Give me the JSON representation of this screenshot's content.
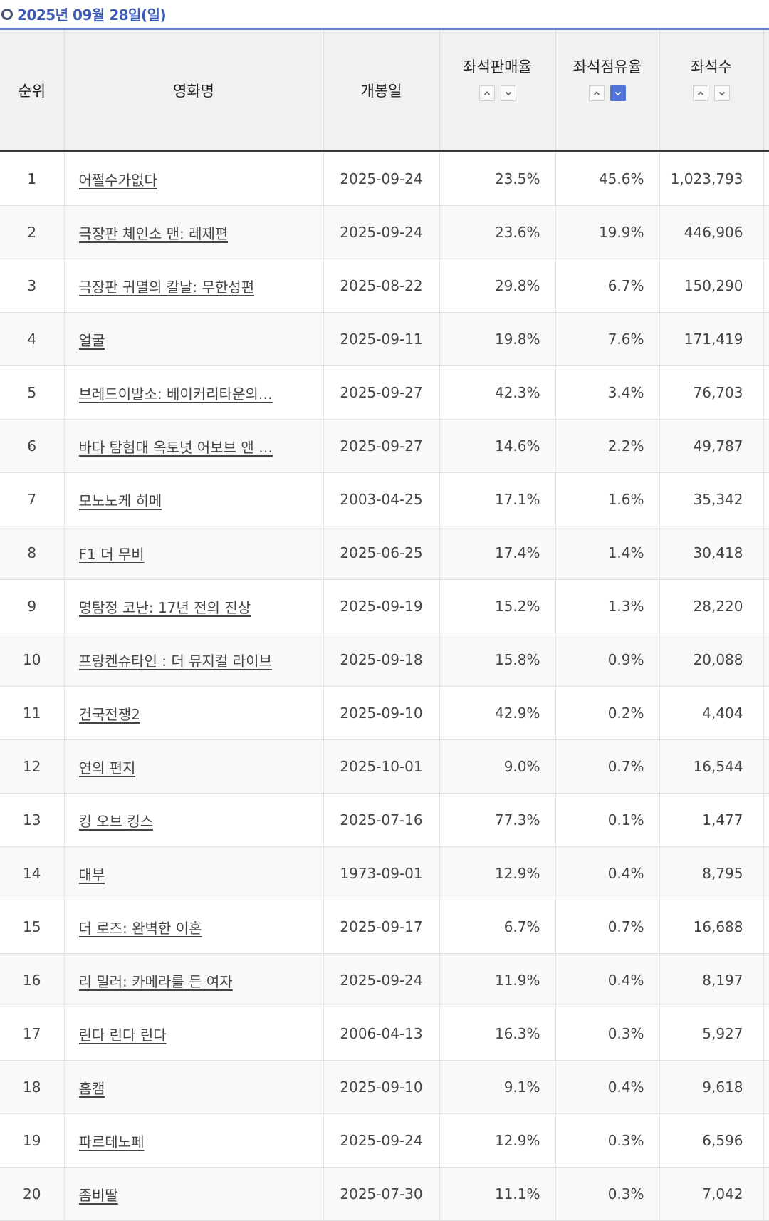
{
  "header": {
    "date": "2025년 09월 28일(일)"
  },
  "columns": {
    "rank": "순위",
    "title": "영화명",
    "release": "개봉일",
    "sales_rate": "좌석판매율",
    "share": "좌석점유율",
    "seats": "좌석수"
  },
  "sort": {
    "active_column": "share",
    "active_direction": "desc",
    "active_color": "#5274d9"
  },
  "rows": [
    {
      "rank": "1",
      "title": "어쩔수가없다",
      "release": "2025-09-24",
      "sales_rate": "23.5%",
      "share": "45.6%",
      "seats": "1,023,793"
    },
    {
      "rank": "2",
      "title": "극장판 체인소 맨: 레제편",
      "release": "2025-09-24",
      "sales_rate": "23.6%",
      "share": "19.9%",
      "seats": "446,906"
    },
    {
      "rank": "3",
      "title": "극장판 귀멸의 칼날: 무한성편",
      "release": "2025-08-22",
      "sales_rate": "29.8%",
      "share": "6.7%",
      "seats": "150,290"
    },
    {
      "rank": "4",
      "title": "얼굴",
      "release": "2025-09-11",
      "sales_rate": "19.8%",
      "share": "7.6%",
      "seats": "171,419"
    },
    {
      "rank": "5",
      "title": "브레드이발소: 베이커리타운의…",
      "release": "2025-09-27",
      "sales_rate": "42.3%",
      "share": "3.4%",
      "seats": "76,703"
    },
    {
      "rank": "6",
      "title": "바다 탐험대 옥토넛 어보브 앤 …",
      "release": "2025-09-27",
      "sales_rate": "14.6%",
      "share": "2.2%",
      "seats": "49,787"
    },
    {
      "rank": "7",
      "title": "모노노케 히메",
      "release": "2003-04-25",
      "sales_rate": "17.1%",
      "share": "1.6%",
      "seats": "35,342"
    },
    {
      "rank": "8",
      "title": "F1 더 무비",
      "release": "2025-06-25",
      "sales_rate": "17.4%",
      "share": "1.4%",
      "seats": "30,418"
    },
    {
      "rank": "9",
      "title": "명탐정 코난: 17년 전의 진상",
      "release": "2025-09-19",
      "sales_rate": "15.2%",
      "share": "1.3%",
      "seats": "28,220"
    },
    {
      "rank": "10",
      "title": "프랑켄슈타인 : 더 뮤지컬 라이브",
      "release": "2025-09-18",
      "sales_rate": "15.8%",
      "share": "0.9%",
      "seats": "20,088"
    },
    {
      "rank": "11",
      "title": "건국전쟁2",
      "release": "2025-09-10",
      "sales_rate": "42.9%",
      "share": "0.2%",
      "seats": "4,404"
    },
    {
      "rank": "12",
      "title": "연의 편지",
      "release": "2025-10-01",
      "sales_rate": "9.0%",
      "share": "0.7%",
      "seats": "16,544"
    },
    {
      "rank": "13",
      "title": "킹 오브 킹스",
      "release": "2025-07-16",
      "sales_rate": "77.3%",
      "share": "0.1%",
      "seats": "1,477"
    },
    {
      "rank": "14",
      "title": "대부",
      "release": "1973-09-01",
      "sales_rate": "12.9%",
      "share": "0.4%",
      "seats": "8,795"
    },
    {
      "rank": "15",
      "title": "더 로즈: 완벽한 이혼",
      "release": "2025-09-17",
      "sales_rate": "6.7%",
      "share": "0.7%",
      "seats": "16,688"
    },
    {
      "rank": "16",
      "title": "리 밀러: 카메라를 든 여자",
      "release": "2025-09-24",
      "sales_rate": "11.9%",
      "share": "0.4%",
      "seats": "8,197"
    },
    {
      "rank": "17",
      "title": "린다 린다 린다",
      "release": "2006-04-13",
      "sales_rate": "16.3%",
      "share": "0.3%",
      "seats": "5,927"
    },
    {
      "rank": "18",
      "title": "홈캠",
      "release": "2025-09-10",
      "sales_rate": "9.1%",
      "share": "0.4%",
      "seats": "9,618"
    },
    {
      "rank": "19",
      "title": "파르테노페",
      "release": "2025-09-24",
      "sales_rate": "12.9%",
      "share": "0.3%",
      "seats": "6,596"
    },
    {
      "rank": "20",
      "title": "좀비딸",
      "release": "2025-07-30",
      "sales_rate": "11.1%",
      "share": "0.3%",
      "seats": "7,042"
    }
  ]
}
